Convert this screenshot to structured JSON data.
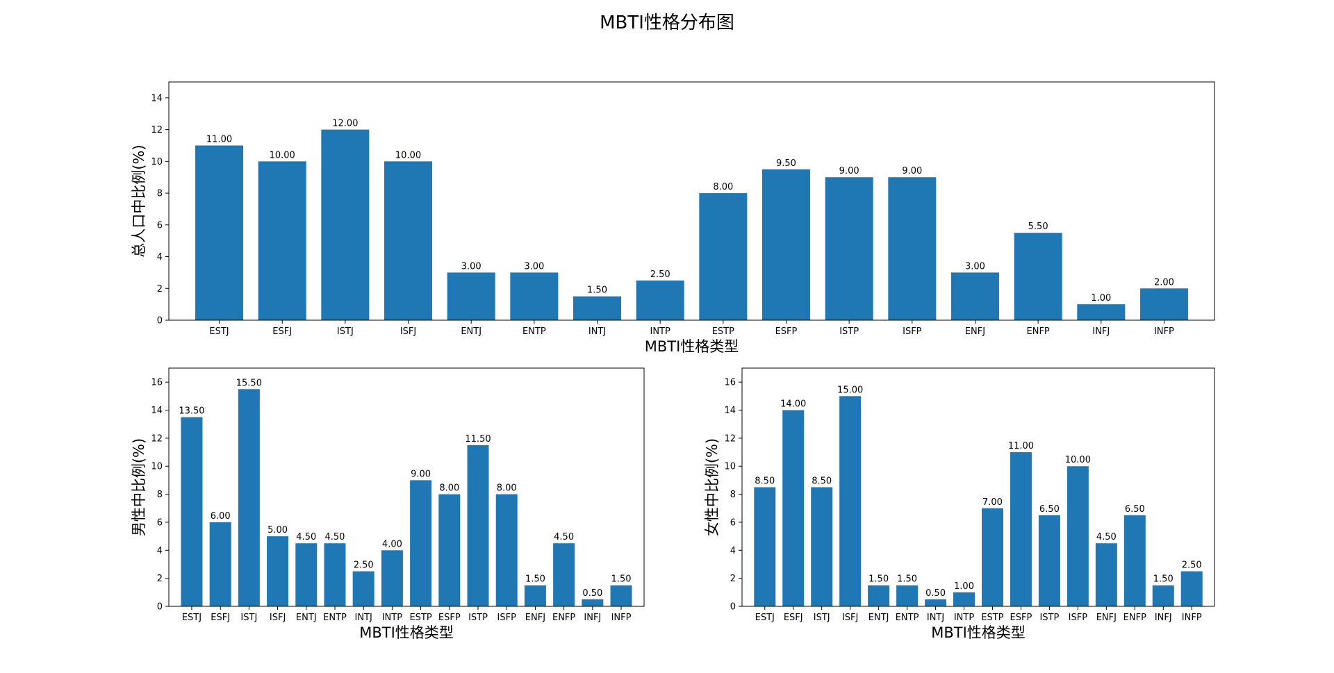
{
  "figure": {
    "title": "MBTI性格分布图",
    "bar_color": "#1f77b4",
    "background": "#ffffff"
  },
  "chart_data": [
    {
      "id": "total",
      "type": "bar",
      "categories": [
        "ESTJ",
        "ESFJ",
        "ISTJ",
        "ISFJ",
        "ENTJ",
        "ENTP",
        "INTJ",
        "INTP",
        "ESTP",
        "ESFP",
        "ISTP",
        "ISFP",
        "ENFJ",
        "ENFP",
        "INFJ",
        "INFP"
      ],
      "values": [
        11.0,
        10.0,
        12.0,
        10.0,
        3.0,
        3.0,
        1.5,
        2.5,
        8.0,
        9.5,
        9.0,
        9.0,
        3.0,
        5.5,
        1.0,
        2.0
      ],
      "value_labels": [
        "11.00",
        "10.00",
        "12.00",
        "10.00",
        "3.00",
        "3.00",
        "1.50",
        "2.50",
        "8.00",
        "9.50",
        "9.00",
        "9.00",
        "3.00",
        "5.50",
        "1.00",
        "2.00"
      ],
      "xlabel": "MBTI性格类型",
      "ylabel": "总人口中比例(%)",
      "ylim": [
        0,
        15
      ],
      "yticks": [
        0,
        2,
        4,
        6,
        8,
        10,
        12,
        14
      ],
      "ytick_labels": [
        "0",
        "2",
        "4",
        "6",
        "8",
        "10",
        "12",
        "14"
      ],
      "grid": false
    },
    {
      "id": "male",
      "type": "bar",
      "categories": [
        "ESTJ",
        "ESFJ",
        "ISTJ",
        "ISFJ",
        "ENTJ",
        "ENTP",
        "INTJ",
        "INTP",
        "ESTP",
        "ESFP",
        "ISTP",
        "ISFP",
        "ENFJ",
        "ENFP",
        "INFJ",
        "INFP"
      ],
      "values": [
        13.5,
        6.0,
        15.5,
        5.0,
        4.5,
        4.5,
        2.5,
        4.0,
        9.0,
        8.0,
        11.5,
        8.0,
        1.5,
        4.5,
        0.5,
        1.5
      ],
      "value_labels": [
        "13.50",
        "6.00",
        "15.50",
        "5.00",
        "4.50",
        "4.50",
        "2.50",
        "4.00",
        "9.00",
        "8.00",
        "11.50",
        "8.00",
        "1.50",
        "4.50",
        "0.50",
        "1.50"
      ],
      "xlabel": "MBTI性格类型",
      "ylabel": "男性中比例(%)",
      "ylim": [
        0,
        17
      ],
      "yticks": [
        0,
        2,
        4,
        6,
        8,
        10,
        12,
        14,
        16
      ],
      "ytick_labels": [
        "0",
        "2",
        "4",
        "6",
        "8",
        "10",
        "12",
        "14",
        "16"
      ],
      "grid": false
    },
    {
      "id": "female",
      "type": "bar",
      "categories": [
        "ESTJ",
        "ESFJ",
        "ISTJ",
        "ISFJ",
        "ENTJ",
        "ENTP",
        "INTJ",
        "INTP",
        "ESTP",
        "ESFP",
        "ISTP",
        "ISFP",
        "ENFJ",
        "ENFP",
        "INFJ",
        "INFP"
      ],
      "values": [
        8.5,
        14.0,
        8.5,
        15.0,
        1.5,
        1.5,
        0.5,
        1.0,
        7.0,
        11.0,
        6.5,
        10.0,
        4.5,
        6.5,
        1.5,
        2.5
      ],
      "value_labels": [
        "8.50",
        "14.00",
        "8.50",
        "15.00",
        "1.50",
        "1.50",
        "0.50",
        "1.00",
        "7.00",
        "11.00",
        "6.50",
        "10.00",
        "4.50",
        "6.50",
        "1.50",
        "2.50"
      ],
      "xlabel": "MBTI性格类型",
      "ylabel": "女性中比例(%)",
      "ylim": [
        0,
        17
      ],
      "yticks": [
        0,
        2,
        4,
        6,
        8,
        10,
        12,
        14,
        16
      ],
      "ytick_labels": [
        "0",
        "2",
        "4",
        "6",
        "8",
        "10",
        "12",
        "14",
        "16"
      ],
      "grid": false
    }
  ]
}
